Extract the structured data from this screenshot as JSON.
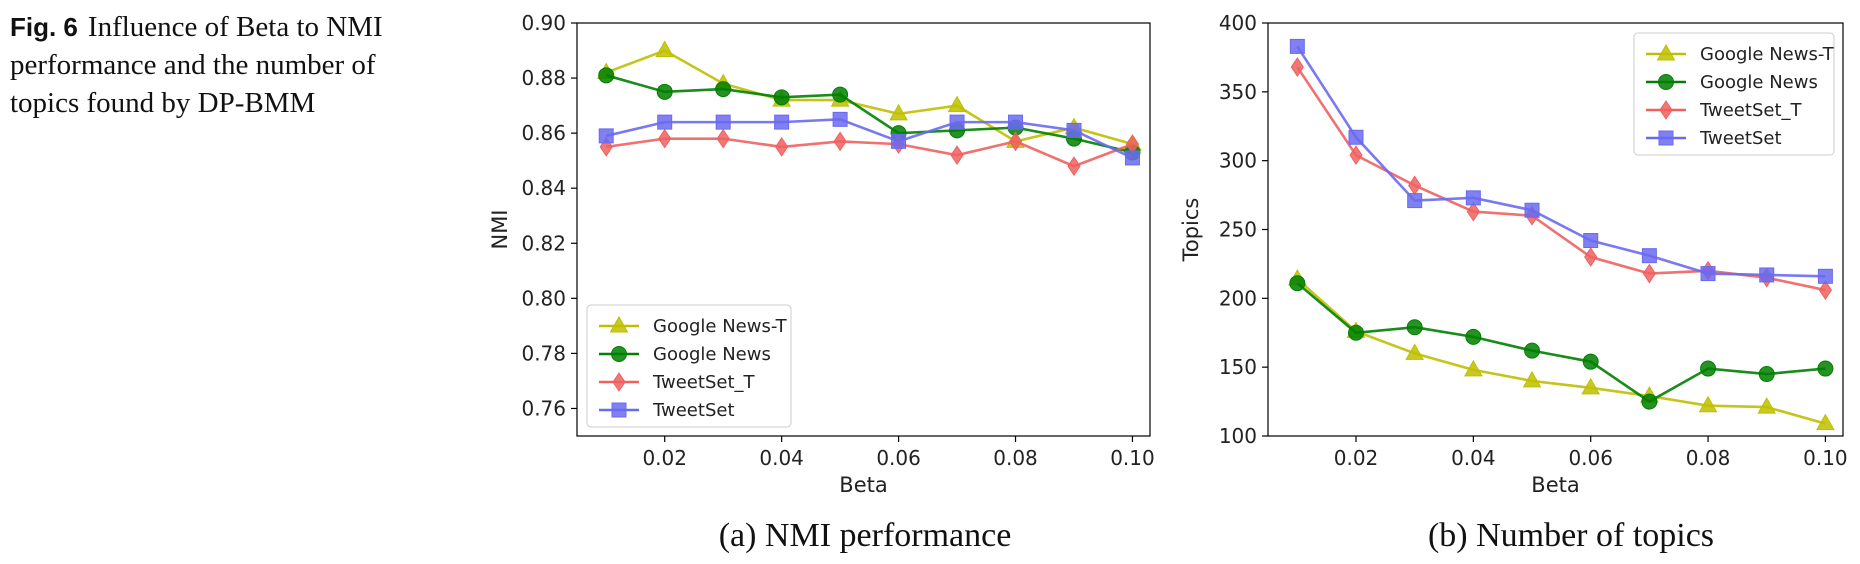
{
  "caption": {
    "label": "Fig. 6",
    "text": "Influence of Beta to NMI performance and the number of topics found by DP-BMM"
  },
  "colors": {
    "google_news_t": "#bfbf00",
    "google_news": "#007f00",
    "tweetset_t": "#f06060",
    "tweetset": "#6a6af0"
  },
  "chart_data": [
    {
      "type": "line",
      "subcaption": "(a) NMI performance",
      "xlabel": "Beta",
      "ylabel": "NMI",
      "xlim": [
        0.005,
        0.103
      ],
      "ylim": [
        0.75,
        0.9
      ],
      "xticks": [
        0.02,
        0.04,
        0.06,
        0.08,
        0.1
      ],
      "xtick_labels": [
        "0.02",
        "0.04",
        "0.06",
        "0.08",
        "0.10"
      ],
      "yticks": [
        0.76,
        0.78,
        0.8,
        0.82,
        0.84,
        0.86,
        0.88,
        0.9
      ],
      "ytick_labels": [
        "0.76",
        "0.78",
        "0.80",
        "0.82",
        "0.84",
        "0.86",
        "0.88",
        "0.90"
      ],
      "legend_position": "lower-left",
      "x": [
        0.01,
        0.02,
        0.03,
        0.04,
        0.05,
        0.06,
        0.07,
        0.08,
        0.09,
        0.1
      ],
      "series": [
        {
          "name": "Google News-T",
          "color_key": "google_news_t",
          "marker": "triangle",
          "values": [
            0.882,
            0.89,
            0.878,
            0.872,
            0.872,
            0.867,
            0.87,
            0.857,
            0.862,
            0.856
          ]
        },
        {
          "name": "Google News",
          "color_key": "google_news",
          "marker": "circle",
          "values": [
            0.881,
            0.875,
            0.876,
            0.873,
            0.874,
            0.86,
            0.861,
            0.862,
            0.858,
            0.853
          ]
        },
        {
          "name": "TweetSet_T",
          "color_key": "tweetset_t",
          "marker": "diamond",
          "values": [
            0.855,
            0.858,
            0.858,
            0.855,
            0.857,
            0.856,
            0.852,
            0.857,
            0.848,
            0.856
          ]
        },
        {
          "name": "TweetSet",
          "color_key": "tweetset",
          "marker": "square",
          "values": [
            0.859,
            0.864,
            0.864,
            0.864,
            0.865,
            0.857,
            0.864,
            0.864,
            0.861,
            0.851
          ]
        }
      ]
    },
    {
      "type": "line",
      "subcaption": "(b) Number of topics",
      "xlabel": "Beta",
      "ylabel": "Topics",
      "xlim": [
        0.005,
        0.103
      ],
      "ylim": [
        100,
        400
      ],
      "xticks": [
        0.02,
        0.04,
        0.06,
        0.08,
        0.1
      ],
      "xtick_labels": [
        "0.02",
        "0.04",
        "0.06",
        "0.08",
        "0.10"
      ],
      "yticks": [
        100,
        150,
        200,
        250,
        300,
        350,
        400
      ],
      "ytick_labels": [
        "100",
        "150",
        "200",
        "250",
        "300",
        "350",
        "400"
      ],
      "legend_position": "upper-right",
      "x": [
        0.01,
        0.02,
        0.03,
        0.04,
        0.05,
        0.06,
        0.07,
        0.08,
        0.09,
        0.1
      ],
      "series": [
        {
          "name": "Google News-T",
          "color_key": "google_news_t",
          "marker": "triangle",
          "values": [
            214,
            176,
            160,
            148,
            140,
            135,
            129,
            122,
            121,
            109
          ]
        },
        {
          "name": "Google News",
          "color_key": "google_news",
          "marker": "circle",
          "values": [
            211,
            175,
            179,
            172,
            162,
            154,
            125,
            149,
            145,
            149
          ]
        },
        {
          "name": "TweetSet_T",
          "color_key": "tweetset_t",
          "marker": "diamond",
          "values": [
            368,
            304,
            282,
            263,
            260,
            230,
            218,
            220,
            215,
            206
          ]
        },
        {
          "name": "TweetSet",
          "color_key": "tweetset",
          "marker": "square",
          "values": [
            383,
            317,
            271,
            273,
            264,
            242,
            231,
            218,
            217,
            216
          ]
        }
      ]
    }
  ]
}
